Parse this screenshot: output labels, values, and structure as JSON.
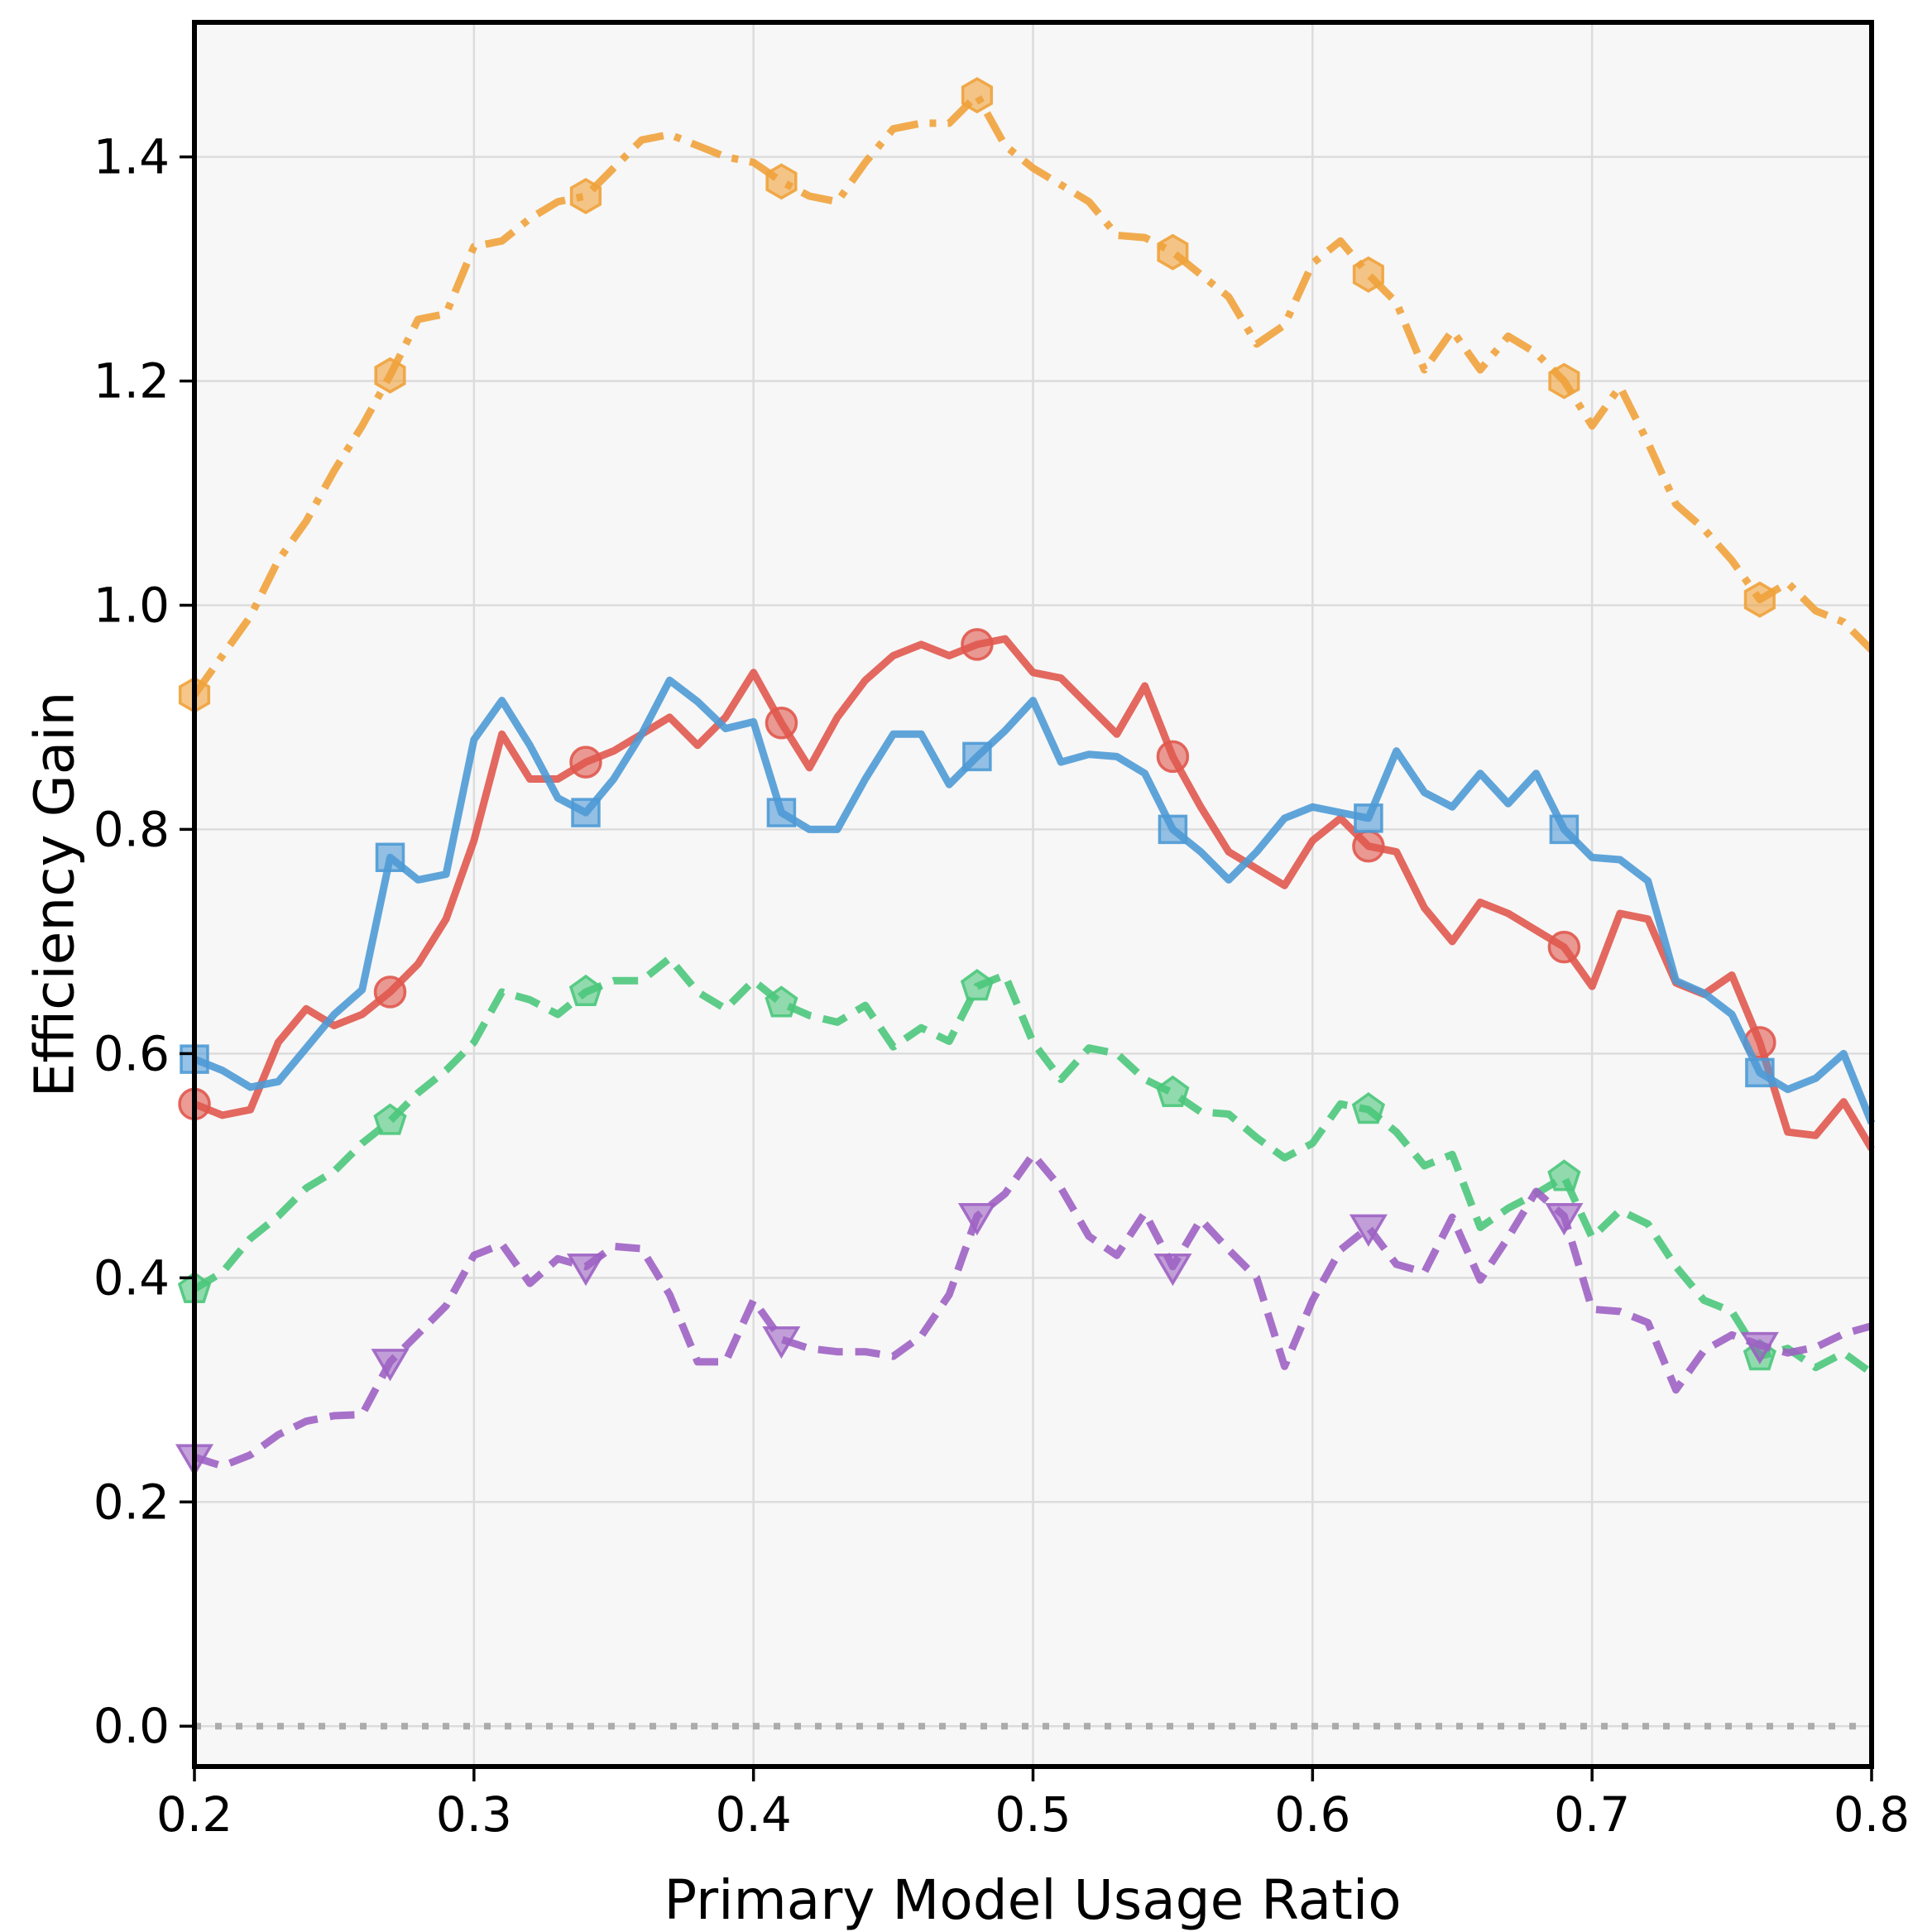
{
  "chart_data": {
    "type": "line",
    "title": "",
    "xlabel": "Primary Model Usage Ratio",
    "ylabel": "Efficiency Gain",
    "xlim": [
      0.2,
      0.8
    ],
    "ylim": [
      -0.036,
      1.52
    ],
    "grid": true,
    "legend": "none",
    "x_start": 0.2,
    "x_step": 0.01,
    "marker_every": 7,
    "xticks": {
      "values": [
        0.2,
        0.3,
        0.4,
        0.5,
        0.6,
        0.7,
        0.8
      ],
      "labels": [
        "0.2",
        "0.3",
        "0.4",
        "0.5",
        "0.6",
        "0.7",
        "0.8"
      ]
    },
    "yticks": {
      "values": [
        0.0,
        0.2,
        0.4,
        0.6,
        0.8,
        1.0,
        1.2,
        1.4
      ],
      "labels": [
        "0.0",
        "0.2",
        "0.4",
        "0.6",
        "0.8",
        "1.0",
        "1.2",
        "1.4"
      ]
    },
    "baseline": {
      "y": 0.0,
      "color": "#acacac",
      "style": "dotted"
    },
    "colors": {
      "plot_background": "#f7f7f7",
      "grid": "#dcdcdc",
      "spine": "#000000",
      "text": "#000000"
    },
    "series": [
      {
        "name": "orange-dashdot-hexagon",
        "color": "#F0A23B",
        "style": "dashdot",
        "marker": "hexagon",
        "values": [
          0.92,
          0.955,
          0.99,
          1.04,
          1.075,
          1.12,
          1.16,
          1.205,
          1.255,
          1.26,
          1.32,
          1.325,
          1.345,
          1.36,
          1.365,
          1.39,
          1.415,
          1.42,
          1.41,
          1.4,
          1.395,
          1.378,
          1.365,
          1.36,
          1.395,
          1.425,
          1.43,
          1.43,
          1.455,
          1.41,
          1.39,
          1.375,
          1.36,
          1.33,
          1.328,
          1.315,
          1.295,
          1.275,
          1.233,
          1.25,
          1.305,
          1.325,
          1.295,
          1.27,
          1.21,
          1.245,
          1.21,
          1.24,
          1.225,
          1.2,
          1.16,
          1.195,
          1.145,
          1.09,
          1.068,
          1.04,
          1.005,
          1.02,
          0.995,
          0.985,
          0.96
        ]
      },
      {
        "name": "red-solid-circle",
        "color": "#E0584E",
        "style": "solid",
        "marker": "circle",
        "values": [
          0.555,
          0.545,
          0.55,
          0.61,
          0.64,
          0.625,
          0.635,
          0.655,
          0.68,
          0.72,
          0.79,
          0.885,
          0.845,
          0.845,
          0.86,
          0.87,
          0.885,
          0.9,
          0.875,
          0.9,
          0.94,
          0.895,
          0.855,
          0.9,
          0.933,
          0.955,
          0.965,
          0.955,
          0.965,
          0.97,
          0.94,
          0.935,
          0.91,
          0.885,
          0.928,
          0.865,
          0.82,
          0.78,
          0.765,
          0.75,
          0.79,
          0.81,
          0.785,
          0.78,
          0.73,
          0.7,
          0.735,
          0.725,
          0.71,
          0.695,
          0.66,
          0.725,
          0.72,
          0.663,
          0.653,
          0.67,
          0.61,
          0.53,
          0.527,
          0.557,
          0.515
        ]
      },
      {
        "name": "blue-solid-square",
        "color": "#4E9AD5",
        "style": "solid",
        "marker": "square",
        "values": [
          0.595,
          0.585,
          0.57,
          0.575,
          0.605,
          0.635,
          0.657,
          0.775,
          0.755,
          0.76,
          0.88,
          0.915,
          0.875,
          0.828,
          0.815,
          0.845,
          0.885,
          0.933,
          0.914,
          0.89,
          0.896,
          0.815,
          0.8,
          0.8,
          0.845,
          0.885,
          0.885,
          0.84,
          0.865,
          0.888,
          0.915,
          0.86,
          0.867,
          0.865,
          0.85,
          0.8,
          0.78,
          0.755,
          0.78,
          0.81,
          0.82,
          0.815,
          0.81,
          0.87,
          0.833,
          0.82,
          0.85,
          0.823,
          0.85,
          0.8,
          0.775,
          0.773,
          0.754,
          0.665,
          0.654,
          0.635,
          0.583,
          0.568,
          0.578,
          0.6,
          0.538
        ]
      },
      {
        "name": "green-dashed-pentagon",
        "color": "#4BC67B",
        "style": "dashed",
        "marker": "pentagon",
        "values": [
          0.39,
          0.405,
          0.435,
          0.455,
          0.48,
          0.495,
          0.52,
          0.54,
          0.565,
          0.585,
          0.61,
          0.655,
          0.648,
          0.635,
          0.655,
          0.665,
          0.665,
          0.685,
          0.655,
          0.64,
          0.665,
          0.645,
          0.634,
          0.628,
          0.643,
          0.606,
          0.623,
          0.611,
          0.66,
          0.67,
          0.61,
          0.577,
          0.605,
          0.6,
          0.577,
          0.565,
          0.548,
          0.546,
          0.525,
          0.507,
          0.52,
          0.555,
          0.55,
          0.53,
          0.5,
          0.51,
          0.445,
          0.462,
          0.475,
          0.49,
          0.436,
          0.46,
          0.448,
          0.41,
          0.38,
          0.37,
          0.33,
          0.337,
          0.32,
          0.333,
          0.315
        ]
      },
      {
        "name": "purple-dashed-triangle",
        "color": "#9D62C3",
        "style": "dashed",
        "marker": "triangle-down",
        "values": [
          0.24,
          0.232,
          0.242,
          0.26,
          0.272,
          0.277,
          0.278,
          0.325,
          0.35,
          0.375,
          0.42,
          0.43,
          0.395,
          0.417,
          0.41,
          0.428,
          0.426,
          0.385,
          0.325,
          0.325,
          0.38,
          0.345,
          0.337,
          0.334,
          0.334,
          0.33,
          0.348,
          0.385,
          0.455,
          0.475,
          0.51,
          0.48,
          0.437,
          0.42,
          0.458,
          0.41,
          0.452,
          0.425,
          0.4,
          0.321,
          0.38,
          0.425,
          0.445,
          0.412,
          0.405,
          0.454,
          0.398,
          0.436,
          0.477,
          0.455,
          0.372,
          0.37,
          0.36,
          0.3,
          0.335,
          0.349,
          0.34,
          0.333,
          0.338,
          0.35,
          0.357
        ]
      }
    ]
  }
}
